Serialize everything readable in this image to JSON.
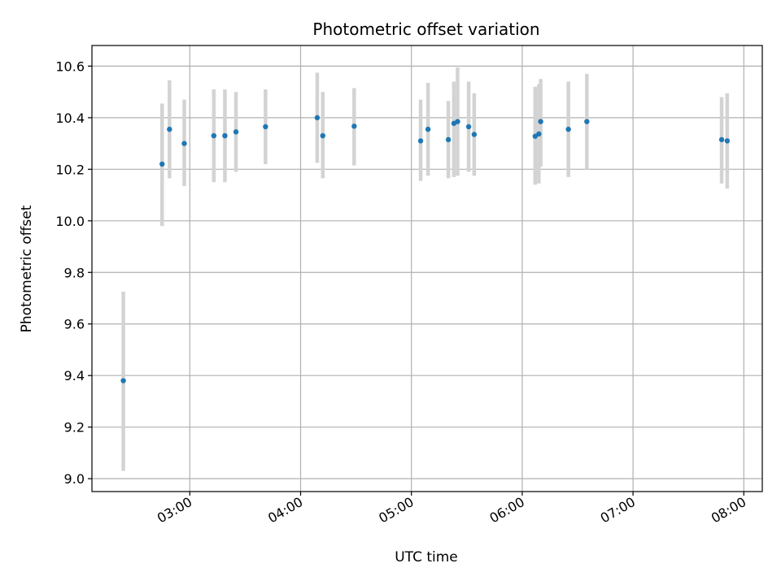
{
  "chart_data": {
    "type": "scatter",
    "title": "Photometric offset variation",
    "xlabel": "UTC time",
    "ylabel": "Photometric offset",
    "x_tick_labels": [
      "03:00",
      "04:00",
      "05:00",
      "06:00",
      "07:00",
      "08:00"
    ],
    "y_tick_labels": [
      "9.0",
      "9.2",
      "9.4",
      "9.6",
      "9.8",
      "10.0",
      "10.2",
      "10.4",
      "10.6"
    ],
    "xlim": [
      "02:07",
      "08:10"
    ],
    "ylim": [
      8.95,
      10.68
    ],
    "grid": true,
    "colors": {
      "marker": "#1f77b4",
      "errorbar": "#d3d3d3",
      "grid": "#b0b0b0"
    },
    "points": [
      {
        "x": "02:24",
        "y": 9.38,
        "err_low": 9.03,
        "err_high": 9.725
      },
      {
        "x": "02:45",
        "y": 10.22,
        "err_low": 9.98,
        "err_high": 10.455
      },
      {
        "x": "02:49",
        "y": 10.355,
        "err_low": 10.165,
        "err_high": 10.545
      },
      {
        "x": "02:57",
        "y": 10.3,
        "err_low": 10.135,
        "err_high": 10.47
      },
      {
        "x": "03:13",
        "y": 10.33,
        "err_low": 10.15,
        "err_high": 10.51
      },
      {
        "x": "03:19",
        "y": 10.33,
        "err_low": 10.15,
        "err_high": 10.51
      },
      {
        "x": "03:25",
        "y": 10.345,
        "err_low": 10.19,
        "err_high": 10.5
      },
      {
        "x": "03:41",
        "y": 10.365,
        "err_low": 10.22,
        "err_high": 10.51
      },
      {
        "x": "04:09",
        "y": 10.4,
        "err_low": 10.225,
        "err_high": 10.575
      },
      {
        "x": "04:12",
        "y": 10.33,
        "err_low": 10.165,
        "err_high": 10.5
      },
      {
        "x": "04:29",
        "y": 10.367,
        "err_low": 10.215,
        "err_high": 10.515
      },
      {
        "x": "05:05",
        "y": 10.31,
        "err_low": 10.155,
        "err_high": 10.47
      },
      {
        "x": "05:09",
        "y": 10.355,
        "err_low": 10.175,
        "err_high": 10.535
      },
      {
        "x": "05:20",
        "y": 10.315,
        "err_low": 10.165,
        "err_high": 10.465
      },
      {
        "x": "05:23",
        "y": 10.378,
        "err_low": 10.17,
        "err_high": 10.54
      },
      {
        "x": "05:25",
        "y": 10.385,
        "err_low": 10.175,
        "err_high": 10.595
      },
      {
        "x": "05:31",
        "y": 10.365,
        "err_low": 10.19,
        "err_high": 10.54
      },
      {
        "x": "05:34",
        "y": 10.335,
        "err_low": 10.175,
        "err_high": 10.495
      },
      {
        "x": "06:07",
        "y": 10.328,
        "err_low": 10.14,
        "err_high": 10.52
      },
      {
        "x": "06:09",
        "y": 10.337,
        "err_low": 10.145,
        "err_high": 10.53
      },
      {
        "x": "06:10",
        "y": 10.385,
        "err_low": 10.21,
        "err_high": 10.55
      },
      {
        "x": "06:25",
        "y": 10.355,
        "err_low": 10.17,
        "err_high": 10.54
      },
      {
        "x": "06:35",
        "y": 10.385,
        "err_low": 10.2,
        "err_high": 10.57
      },
      {
        "x": "07:48",
        "y": 10.315,
        "err_low": 10.145,
        "err_high": 10.48
      },
      {
        "x": "07:51",
        "y": 10.31,
        "err_low": 10.125,
        "err_high": 10.495
      }
    ]
  }
}
